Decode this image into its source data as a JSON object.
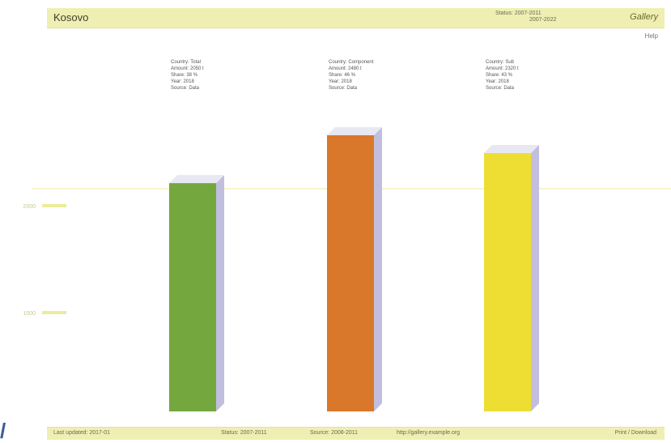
{
  "header": {
    "title": "Kosovo",
    "meta_label": "Status: 2007-2011",
    "meta_value": "2007-2022",
    "brand": "Gallery"
  },
  "help_link": "Help",
  "chart_data": {
    "type": "bar",
    "categories": [
      "Green",
      "Orange",
      "Yellow"
    ],
    "values": [
      2050,
      2480,
      2320
    ],
    "colors": [
      "#74a73e",
      "#d9782b",
      "#eede33"
    ],
    "ylim": [
      0,
      2720
    ],
    "gridline_at": 2000,
    "gridline_color": "#eeee99",
    "side_color": "#c1bede",
    "tick_labels": [
      "2000",
      "1000"
    ],
    "annotations": [
      [
        "Country: Total",
        "Amount: 2050 t",
        "Share: 38 %",
        "Year: 2018",
        "Source: Data"
      ],
      [
        "Country: Component",
        "Amount: 2480 t",
        "Share: 46 %",
        "Year: 2018",
        "Source: Data"
      ],
      [
        "Country: Sub",
        "Amount: 2320 t",
        "Share: 43 %",
        "Year: 2018",
        "Source: Data"
      ]
    ]
  },
  "footer": {
    "left": "Last updated: 2017-01",
    "mid1": "Status: 2007-2011",
    "mid2": "Source: 2008-2011",
    "mid3": "http://gallery.example.org",
    "right": "Print / Download"
  }
}
